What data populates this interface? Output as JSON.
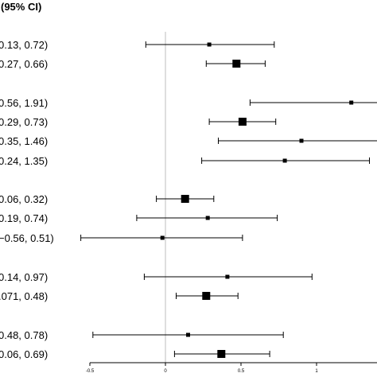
{
  "chart_data": {
    "type": "forest",
    "header": "(95% CI)",
    "xlim": [
      -0.5,
      1.2
    ],
    "x_ticks": [
      {
        "value": -0.5,
        "label": "-0.5"
      },
      {
        "value": 0,
        "label": "0"
      },
      {
        "value": 0.5,
        "label": "0.5"
      },
      {
        "value": 1,
        "label": "1"
      }
    ],
    "reference_line": 0,
    "rows": [
      {
        "label": "0.13, 0.72)",
        "estimate": 0.29,
        "lower": -0.13,
        "upper": 0.72,
        "square": "small"
      },
      {
        "label": "0.27, 0.66)",
        "estimate": 0.47,
        "lower": 0.27,
        "upper": 0.66,
        "square": "large"
      },
      {
        "label": "0.56, 1.91)",
        "estimate": 1.23,
        "lower": 0.56,
        "upper": 1.91,
        "square": "small"
      },
      {
        "label": "0.29, 0.73)",
        "estimate": 0.51,
        "lower": 0.29,
        "upper": 0.73,
        "square": "large"
      },
      {
        "label": "0.35, 1.46)",
        "estimate": 0.9,
        "lower": 0.35,
        "upper": 1.46,
        "square": "small"
      },
      {
        "label": "0.24, 1.35)",
        "estimate": 0.79,
        "lower": 0.24,
        "upper": 1.35,
        "square": "small"
      },
      {
        "label": "0.06, 0.32)",
        "estimate": 0.13,
        "lower": -0.06,
        "upper": 0.32,
        "square": "large"
      },
      {
        "label": "0.19, 0.74)",
        "estimate": 0.28,
        "lower": -0.19,
        "upper": 0.74,
        "square": "small"
      },
      {
        "label": "−0.56, 0.51)",
        "estimate": -0.02,
        "lower": -0.56,
        "upper": 0.51,
        "square": "small"
      },
      {
        "label": "0.14, 0.97)",
        "estimate": 0.41,
        "lower": -0.14,
        "upper": 0.97,
        "square": "small"
      },
      {
        "label": ".071, 0.48)",
        "estimate": 0.27,
        "lower": 0.071,
        "upper": 0.48,
        "square": "large"
      },
      {
        "label": "0.48, 0.78)",
        "estimate": 0.15,
        "lower": -0.48,
        "upper": 0.78,
        "square": "small"
      },
      {
        "label": "0.06, 0.69)",
        "estimate": 0.37,
        "lower": 0.06,
        "upper": 0.69,
        "square": "large"
      }
    ]
  }
}
